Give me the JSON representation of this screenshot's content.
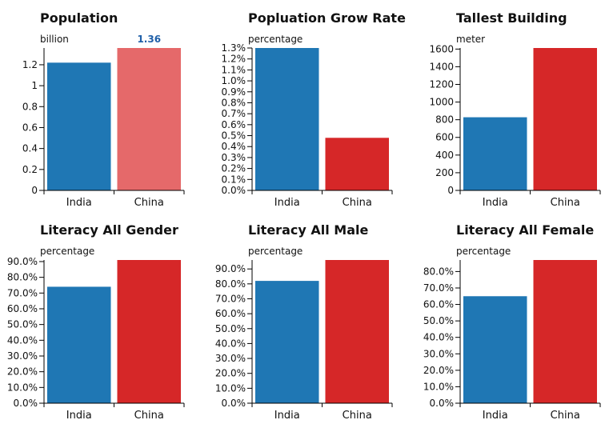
{
  "colors": {
    "india": "#1f77b4",
    "china": "#d62728",
    "china_highlight": "#e5696a",
    "label_highlight": "#1f5fa8"
  },
  "chart_data": [
    {
      "type": "bar",
      "title": "Population",
      "unit": "billion",
      "categories": [
        "India",
        "China"
      ],
      "values": [
        1.22,
        1.36
      ],
      "ylim": [
        0,
        1.36
      ],
      "yticks": [
        0,
        0.2,
        0.4,
        0.6,
        0.8,
        1,
        1.2
      ],
      "ytick_format": "plain",
      "highlight": {
        "index": 1,
        "label": "1.36"
      }
    },
    {
      "type": "bar",
      "title": "Popluation Grow Rate",
      "unit": "percentage",
      "categories": [
        "India",
        "China"
      ],
      "values": [
        0.013,
        0.0048
      ],
      "ylim": [
        0,
        0.013
      ],
      "yticks": [
        0,
        0.001,
        0.002,
        0.003,
        0.004,
        0.005,
        0.006,
        0.007,
        0.008,
        0.009,
        0.01,
        0.011,
        0.012,
        0.013
      ],
      "ytick_format": "pct1"
    },
    {
      "type": "bar",
      "title": "Tallest Building",
      "unit": "meter",
      "categories": [
        "India",
        "China"
      ],
      "values": [
        828,
        1612
      ],
      "ylim": [
        0,
        1612
      ],
      "yticks": [
        0,
        200,
        400,
        600,
        800,
        1000,
        1200,
        1400,
        1600
      ],
      "ytick_format": "plain"
    },
    {
      "type": "bar",
      "title": "Literacy All Gender",
      "unit": "percentage",
      "categories": [
        "India",
        "China"
      ],
      "values": [
        0.74,
        0.91
      ],
      "ylim": [
        0,
        0.91
      ],
      "yticks": [
        0,
        0.1,
        0.2,
        0.3,
        0.4,
        0.5,
        0.6,
        0.7,
        0.8,
        0.9
      ],
      "ytick_format": "pct1"
    },
    {
      "type": "bar",
      "title": "Literacy All Male",
      "unit": "percentage",
      "categories": [
        "India",
        "China"
      ],
      "values": [
        0.82,
        0.96
      ],
      "ylim": [
        0,
        0.96
      ],
      "yticks": [
        0,
        0.1,
        0.2,
        0.3,
        0.4,
        0.5,
        0.6,
        0.7,
        0.8,
        0.9
      ],
      "ytick_format": "pct1"
    },
    {
      "type": "bar",
      "title": "Literacy All Female",
      "unit": "percentage",
      "categories": [
        "India",
        "China"
      ],
      "values": [
        0.65,
        0.87
      ],
      "ylim": [
        0,
        0.87
      ],
      "yticks": [
        0,
        0.1,
        0.2,
        0.3,
        0.4,
        0.5,
        0.6,
        0.7,
        0.8
      ],
      "ytick_format": "pct1"
    }
  ]
}
